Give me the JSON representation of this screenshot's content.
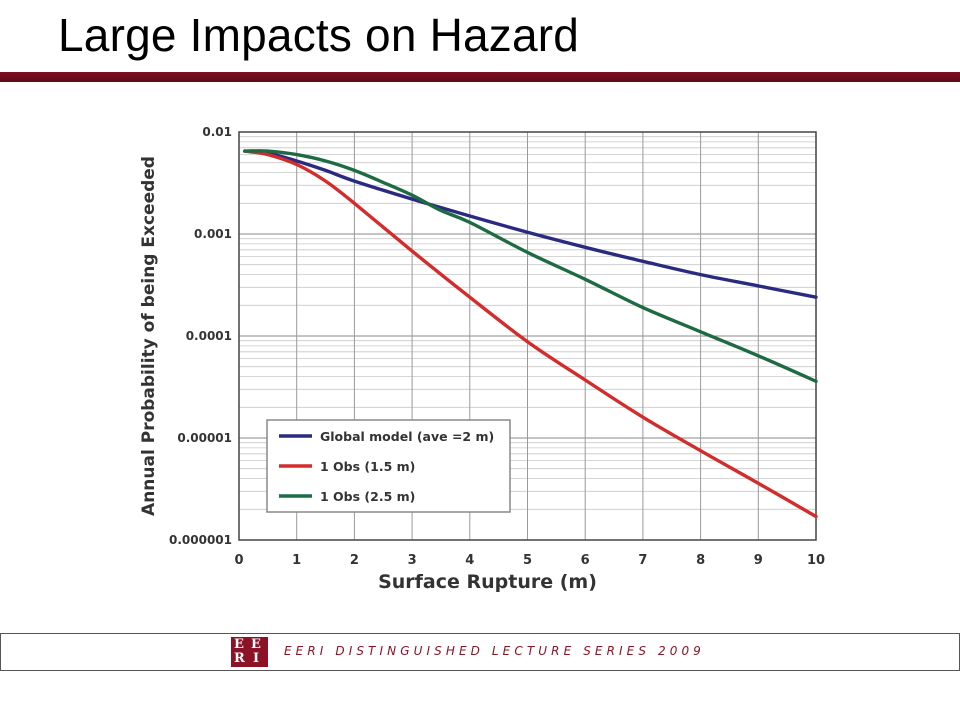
{
  "slide": {
    "title": "Large Impacts on Hazard"
  },
  "footer": {
    "logo": "EERI",
    "text": "EERI DISTINGUISHED LECTURE SERIES 2009"
  },
  "colors": {
    "title_rule": "#6e0c1b",
    "footer_accent": "#8b1325"
  },
  "chart_data": {
    "type": "line",
    "xlabel": "Surface Rupture (m)",
    "ylabel": "Annual Probability of being Exceeded",
    "xlim": [
      0,
      10
    ],
    "ylim": [
      1e-06,
      0.01
    ],
    "yscale": "log",
    "grid": true,
    "legend_position": "bottom-left",
    "x_ticks": [
      "0",
      "1",
      "2",
      "3",
      "4",
      "5",
      "6",
      "7",
      "8",
      "9",
      "10"
    ],
    "y_ticks": [
      {
        "value": 0.01,
        "label": "0.01"
      },
      {
        "value": 0.001,
        "label": "0.001"
      },
      {
        "value": 0.0001,
        "label": "0.0001"
      },
      {
        "value": 1e-05,
        "label": "0.00001"
      },
      {
        "value": 1e-06,
        "label": "0.000001"
      }
    ],
    "series": [
      {
        "name": "Global model (ave =2 m)",
        "color": "#2a2a80",
        "x": [
          0.1,
          0.5,
          1,
          1.5,
          2,
          3,
          4,
          5,
          6,
          7,
          8,
          9,
          10
        ],
        "y": [
          0.0065,
          0.0062,
          0.0052,
          0.0042,
          0.0033,
          0.0022,
          0.0015,
          0.00104,
          0.00074,
          0.00054,
          0.0004,
          0.00031,
          0.00024
        ]
      },
      {
        "name": "1 Obs (1.5 m)",
        "color": "#d42b2b",
        "x": [
          0.1,
          0.5,
          1,
          1.5,
          2,
          3,
          4,
          5,
          6,
          7,
          8,
          9,
          10
        ],
        "y": [
          0.0065,
          0.006,
          0.0048,
          0.0033,
          0.002,
          0.00068,
          0.00024,
          8.8e-05,
          3.7e-05,
          1.6e-05,
          7.5e-06,
          3.6e-06,
          1.7e-06
        ]
      },
      {
        "name": "1 Obs (2.5 m)",
        "color": "#1e6b43",
        "x": [
          0.1,
          0.5,
          1,
          1.5,
          2,
          2.5,
          3,
          3.5,
          4,
          5,
          6,
          7,
          8,
          9,
          10
        ],
        "y": [
          0.0065,
          0.0065,
          0.006,
          0.0052,
          0.0042,
          0.0032,
          0.0024,
          0.0017,
          0.0013,
          0.00066,
          0.00036,
          0.00019,
          0.00011,
          6.4e-05,
          3.6e-05
        ]
      }
    ]
  }
}
